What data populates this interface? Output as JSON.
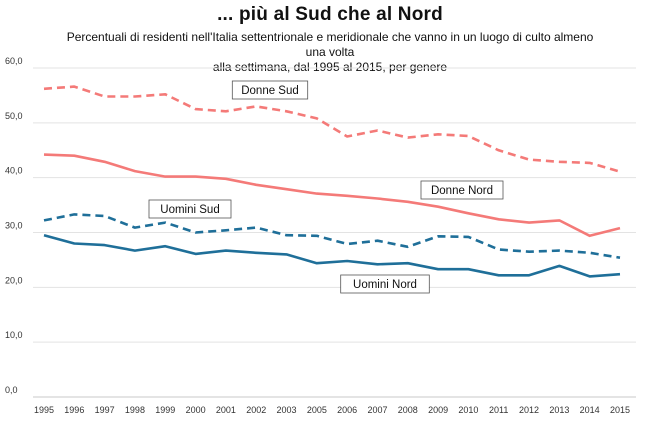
{
  "chart_data": {
    "type": "line",
    "title": "... più al Sud che al Nord",
    "subtitle_line1": "Percentuali di residenti nell'Italia settentrionale e meridionale che vanno in un luogo di culto almeno una volta",
    "subtitle_line2": "alla settimana, dal 1995 al 2015, per genere",
    "x": [
      "1995",
      "1996",
      "1997",
      "1998",
      "1999",
      "2000",
      "2001",
      "2002",
      "2003",
      "2005",
      "2006",
      "2007",
      "2008",
      "2009",
      "2010",
      "2011",
      "2012",
      "2013",
      "2014",
      "2015"
    ],
    "ylim": [
      0,
      60
    ],
    "yticks": [
      0,
      10,
      20,
      30,
      40,
      50,
      60
    ],
    "ytick_labels": [
      "0,0",
      "10,0",
      "20,0",
      "30,0",
      "40,0",
      "50,0",
      "60,0"
    ],
    "grid": true,
    "series": [
      {
        "name": "Donne Sud",
        "color": "#f47a78",
        "dashed": true,
        "values": [
          56.2,
          56.6,
          54.8,
          54.8,
          55.2,
          52.5,
          52.1,
          53.0,
          52.1,
          50.8,
          47.5,
          48.6,
          47.3,
          47.9,
          47.6,
          45.0,
          43.3,
          42.9,
          42.7,
          41.1
        ]
      },
      {
        "name": "Donne Nord",
        "color": "#f47a78",
        "dashed": false,
        "values": [
          44.2,
          44.0,
          42.9,
          41.2,
          40.2,
          40.2,
          39.8,
          38.7,
          37.9,
          37.1,
          36.7,
          36.2,
          35.6,
          34.7,
          33.5,
          32.4,
          31.8,
          32.2,
          29.4,
          30.8
        ]
      },
      {
        "name": "Uomini Sud",
        "color": "#1f6f99",
        "dashed": true,
        "values": [
          32.2,
          33.3,
          33.0,
          30.9,
          31.8,
          30.0,
          30.4,
          30.9,
          29.5,
          29.4,
          27.9,
          28.5,
          27.4,
          29.3,
          29.2,
          26.9,
          26.5,
          26.7,
          26.3,
          25.4
        ]
      },
      {
        "name": "Uomini Nord",
        "color": "#1f6f99",
        "dashed": false,
        "values": [
          29.5,
          28.0,
          27.7,
          26.7,
          27.5,
          26.1,
          26.7,
          26.3,
          26.0,
          24.4,
          24.8,
          24.2,
          24.4,
          23.3,
          23.3,
          22.2,
          22.2,
          23.9,
          22.0,
          22.4
        ]
      }
    ],
    "annotations": [
      {
        "text": "Donne Sud",
        "series": "Donne Sud"
      },
      {
        "text": "Donne Nord",
        "series": "Donne Nord"
      },
      {
        "text": "Uomini Sud",
        "series": "Uomini Sud"
      },
      {
        "text": "Uomini Nord",
        "series": "Uomini Nord"
      }
    ]
  }
}
